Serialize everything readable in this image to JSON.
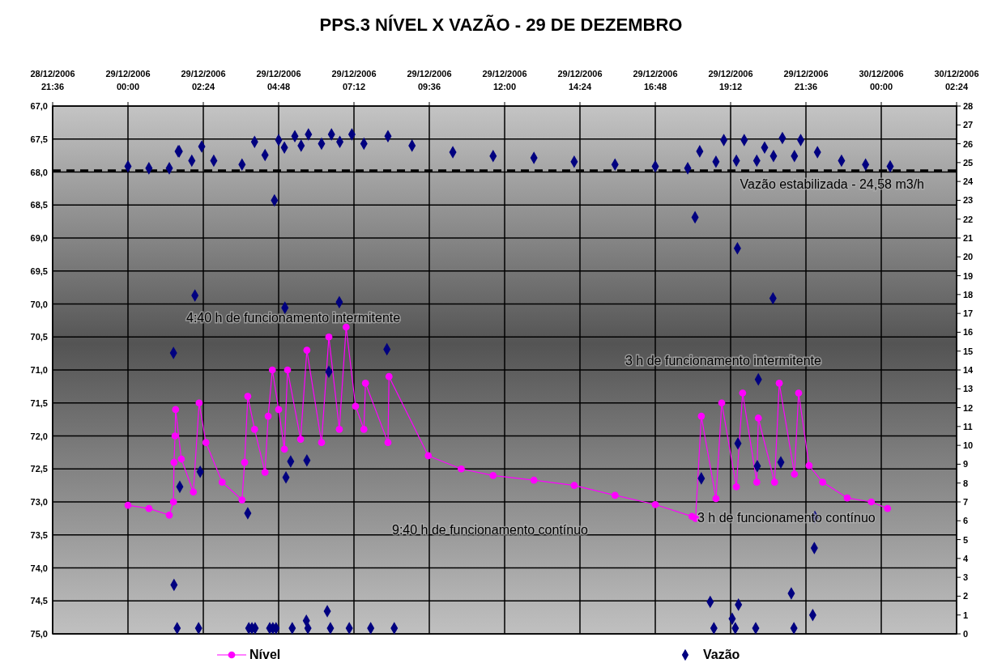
{
  "chart_data": {
    "type": "line",
    "title": "PPS.3 NÍVEL X VAZÃO - 29 DE DEZEMBRO",
    "xlim": [
      "2006-12-28T21:36",
      "2006-12-30T02:24"
    ],
    "xticks": [
      {
        "value": "2006-12-28T21:36",
        "label": "28/12/2006\n21:36"
      },
      {
        "value": "2006-12-29T00:00",
        "label": "29/12/2006\n00:00"
      },
      {
        "value": "2006-12-29T02:24",
        "label": "29/12/2006\n02:24"
      },
      {
        "value": "2006-12-29T04:48",
        "label": "29/12/2006\n04:48"
      },
      {
        "value": "2006-12-29T07:12",
        "label": "29/12/2006\n07:12"
      },
      {
        "value": "2006-12-29T09:36",
        "label": "29/12/2006\n09:36"
      },
      {
        "value": "2006-12-29T12:00",
        "label": "29/12/2006\n12:00"
      },
      {
        "value": "2006-12-29T14:24",
        "label": "29/12/2006\n14:24"
      },
      {
        "value": "2006-12-29T16:48",
        "label": "29/12/2006\n16:48"
      },
      {
        "value": "2006-12-29T19:12",
        "label": "29/12/2006\n19:12"
      },
      {
        "value": "2006-12-29T21:36",
        "label": "29/12/2006\n21:36"
      },
      {
        "value": "2006-12-30T00:00",
        "label": "30/12/2006\n00:00"
      },
      {
        "value": "2006-12-30T02:24",
        "label": "30/12/2006\n02:24"
      }
    ],
    "ylim": [
      75,
      67
    ],
    "yticks": [
      {
        "value": 67,
        "label": "67,0"
      },
      {
        "value": 67.5,
        "label": "67,5"
      },
      {
        "value": 68,
        "label": "68,0"
      },
      {
        "value": 68.5,
        "label": "68,5"
      },
      {
        "value": 69,
        "label": "69,0"
      },
      {
        "value": 69.5,
        "label": "69,5"
      },
      {
        "value": 70,
        "label": "70,0"
      },
      {
        "value": 70.5,
        "label": "70,5"
      },
      {
        "value": 71,
        "label": "71,0"
      },
      {
        "value": 71.5,
        "label": "71,5"
      },
      {
        "value": 72,
        "label": "72,0"
      },
      {
        "value": 72.5,
        "label": "72,5"
      },
      {
        "value": 73,
        "label": "73,0"
      },
      {
        "value": 73.5,
        "label": "73,5"
      },
      {
        "value": 74,
        "label": "74,0"
      },
      {
        "value": 74.5,
        "label": "74,5"
      },
      {
        "value": 75,
        "label": "75,0"
      }
    ],
    "y2lim": [
      0,
      28
    ],
    "y2ticks": [
      0,
      1,
      2,
      3,
      4,
      5,
      6,
      7,
      8,
      9,
      10,
      11,
      12,
      13,
      14,
      15,
      16,
      17,
      18,
      19,
      20,
      21,
      22,
      23,
      24,
      25,
      26,
      27,
      28
    ],
    "grid": true,
    "legend": "bottom",
    "series": [
      {
        "name": "Nível",
        "color": "#ff00ff",
        "marker": "circle",
        "x": [
          "2006-12-29T00:00",
          "2006-12-29T00:40",
          "2006-12-29T01:19",
          "2006-12-29T01:27",
          "2006-12-29T01:28",
          "2006-12-29T01:30",
          "2006-12-29T01:31",
          "2006-12-29T01:42",
          "2006-12-29T02:05",
          "2006-12-29T02:16",
          "2006-12-29T02:29",
          "2006-12-29T03:00",
          "2006-12-29T03:38",
          "2006-12-29T03:43",
          "2006-12-29T03:49",
          "2006-12-29T04:02",
          "2006-12-29T04:22",
          "2006-12-29T04:28",
          "2006-12-29T04:36",
          "2006-12-29T04:48",
          "2006-12-29T04:59",
          "2006-12-29T05:05",
          "2006-12-29T05:30",
          "2006-12-29T05:42",
          "2006-12-29T06:10",
          "2006-12-29T06:24",
          "2006-12-29T06:44",
          "2006-12-29T06:57",
          "2006-12-29T07:15",
          "2006-12-29T07:31",
          "2006-12-29T07:34",
          "2006-12-29T08:17",
          "2006-12-29T08:19",
          "2006-12-29T09:34",
          "2006-12-29T10:37",
          "2006-12-29T11:38",
          "2006-12-29T12:56",
          "2006-12-29T14:13",
          "2006-12-29T15:31",
          "2006-12-29T16:48",
          "2006-12-29T17:58",
          "2006-12-29T18:05",
          "2006-12-29T18:16",
          "2006-12-29T18:44",
          "2006-12-29T18:55",
          "2006-12-29T19:23",
          "2006-12-29T19:35",
          "2006-12-29T20:02",
          "2006-12-29T20:05",
          "2006-12-29T20:36",
          "2006-12-29T20:45",
          "2006-12-29T21:14",
          "2006-12-29T21:22",
          "2006-12-29T21:42",
          "2006-12-29T22:08",
          "2006-12-29T22:55",
          "2006-12-29T23:41",
          "2006-12-30T00:12"
        ],
        "values": [
          73.05,
          73.1,
          73.2,
          73.0,
          72.4,
          72.0,
          71.6,
          72.35,
          72.85,
          71.5,
          72.1,
          72.7,
          72.97,
          72.4,
          71.4,
          71.9,
          72.55,
          71.7,
          71.0,
          71.6,
          72.2,
          71.0,
          72.05,
          70.7,
          72.1,
          70.5,
          71.9,
          70.35,
          71.55,
          71.9,
          71.2,
          72.1,
          71.1,
          72.3,
          72.5,
          72.6,
          72.67,
          72.75,
          72.9,
          73.04,
          73.22,
          73.25,
          71.7,
          72.95,
          71.5,
          72.77,
          71.35,
          72.7,
          71.73,
          72.7,
          71.2,
          72.58,
          71.35,
          72.45,
          72.7,
          72.94,
          73.0,
          73.1
        ]
      },
      {
        "name": "Vazão",
        "type": "scatter",
        "axis": "y2",
        "color": "#000080",
        "marker": "diamond",
        "x": [
          "2006-12-29T00:00",
          "2006-12-29T00:40",
          "2006-12-29T01:19",
          "2006-12-29T01:27",
          "2006-12-29T01:28",
          "2006-12-29T01:34",
          "2006-12-29T01:36",
          "2006-12-29T01:38",
          "2006-12-29T01:39",
          "2006-12-29T02:02",
          "2006-12-29T02:08",
          "2006-12-29T02:15",
          "2006-12-29T02:18",
          "2006-12-29T02:21",
          "2006-12-29T02:44",
          "2006-12-29T03:38",
          "2006-12-29T03:49",
          "2006-12-29T03:51",
          "2006-12-29T03:57",
          "2006-12-29T04:02",
          "2006-12-29T04:03",
          "2006-12-29T04:22",
          "2006-12-29T04:31",
          "2006-12-29T04:37",
          "2006-12-29T04:40",
          "2006-12-29T04:43",
          "2006-12-29T04:48",
          "2006-12-29T04:59",
          "2006-12-29T05:00",
          "2006-12-29T05:02",
          "2006-12-29T05:11",
          "2006-12-29T05:14",
          "2006-12-29T05:19",
          "2006-12-29T05:31",
          "2006-12-29T05:41",
          "2006-12-29T05:42",
          "2006-12-29T05:44",
          "2006-12-29T05:45",
          "2006-12-29T06:10",
          "2006-12-29T06:21",
          "2006-12-29T06:24",
          "2006-12-29T06:27",
          "2006-12-29T06:29",
          "2006-12-29T06:44",
          "2006-12-29T06:45",
          "2006-12-29T07:03",
          "2006-12-29T07:08",
          "2006-12-29T07:31",
          "2006-12-29T07:44",
          "2006-12-29T08:15",
          "2006-12-29T08:17",
          "2006-12-29T08:29",
          "2006-12-29T09:03",
          "2006-12-29T10:21",
          "2006-12-29T11:38",
          "2006-12-29T12:56",
          "2006-12-29T14:13",
          "2006-12-29T15:31",
          "2006-12-29T16:48",
          "2006-12-29T17:50",
          "2006-12-29T18:04",
          "2006-12-29T18:13",
          "2006-12-29T18:16",
          "2006-12-29T18:33",
          "2006-12-29T18:40",
          "2006-12-29T18:44",
          "2006-12-29T18:59",
          "2006-12-29T19:15",
          "2006-12-29T19:21",
          "2006-12-29T19:23",
          "2006-12-29T19:25",
          "2006-12-29T19:26",
          "2006-12-29T19:27",
          "2006-12-29T19:38",
          "2006-12-29T20:00",
          "2006-12-29T20:02",
          "2006-12-29T20:03",
          "2006-12-29T20:05",
          "2006-12-29T20:17",
          "2006-12-29T20:33",
          "2006-12-29T20:34",
          "2006-12-29T20:48",
          "2006-12-29T20:51",
          "2006-12-29T21:08",
          "2006-12-29T21:13",
          "2006-12-29T21:14",
          "2006-12-29T21:26",
          "2006-12-29T21:49",
          "2006-12-29T21:52",
          "2006-12-29T21:53",
          "2006-12-29T21:58",
          "2006-12-29T22:44",
          "2006-12-29T23:30",
          "2006-12-30T00:17"
        ],
        "values": [
          24.8,
          24.7,
          24.7,
          14.9,
          2.6,
          0.3,
          25.6,
          25.6,
          7.8,
          25.1,
          17.95,
          0.3,
          8.6,
          25.85,
          25.1,
          24.9,
          6.4,
          0.3,
          0.3,
          26.1,
          0.3,
          25.4,
          0.3,
          0.3,
          23.0,
          0.3,
          26.2,
          25.8,
          17.3,
          8.3,
          9.15,
          0.3,
          26.4,
          25.9,
          0.7,
          9.2,
          0.3,
          26.5,
          26.0,
          1.2,
          13.9,
          0.3,
          26.5,
          17.6,
          26.1,
          0.3,
          26.5,
          26.0,
          0.3,
          15.1,
          26.4,
          0.3,
          25.9,
          25.55,
          25.35,
          25.25,
          25.05,
          24.9,
          24.8,
          24.7,
          22.1,
          25.6,
          8.25,
          1.7,
          0.3,
          25.05,
          26.2,
          0.8,
          0.3,
          25.1,
          20.45,
          10.1,
          1.55,
          26.2,
          0.3,
          25.1,
          8.9,
          13.5,
          25.8,
          17.8,
          25.35,
          9.1,
          26.3,
          2.15,
          0.3,
          25.35,
          26.2,
          1.0,
          4.55,
          6.2,
          25.55,
          25.1,
          24.9,
          24.8
        ]
      }
    ],
    "ref_lines": [
      {
        "axis": "y2",
        "value": 24.58,
        "label": "Vazão estabilizada - 24,58 m3/h",
        "line_style": "dashed",
        "color": "#000000"
      }
    ],
    "annotations": [
      "4:40 h de funcionamento intermitente",
      "3 h de funcionamento intermitente",
      "9:40 h de funcionamento contínuo",
      "3 h de funcionamento contínuo"
    ]
  }
}
